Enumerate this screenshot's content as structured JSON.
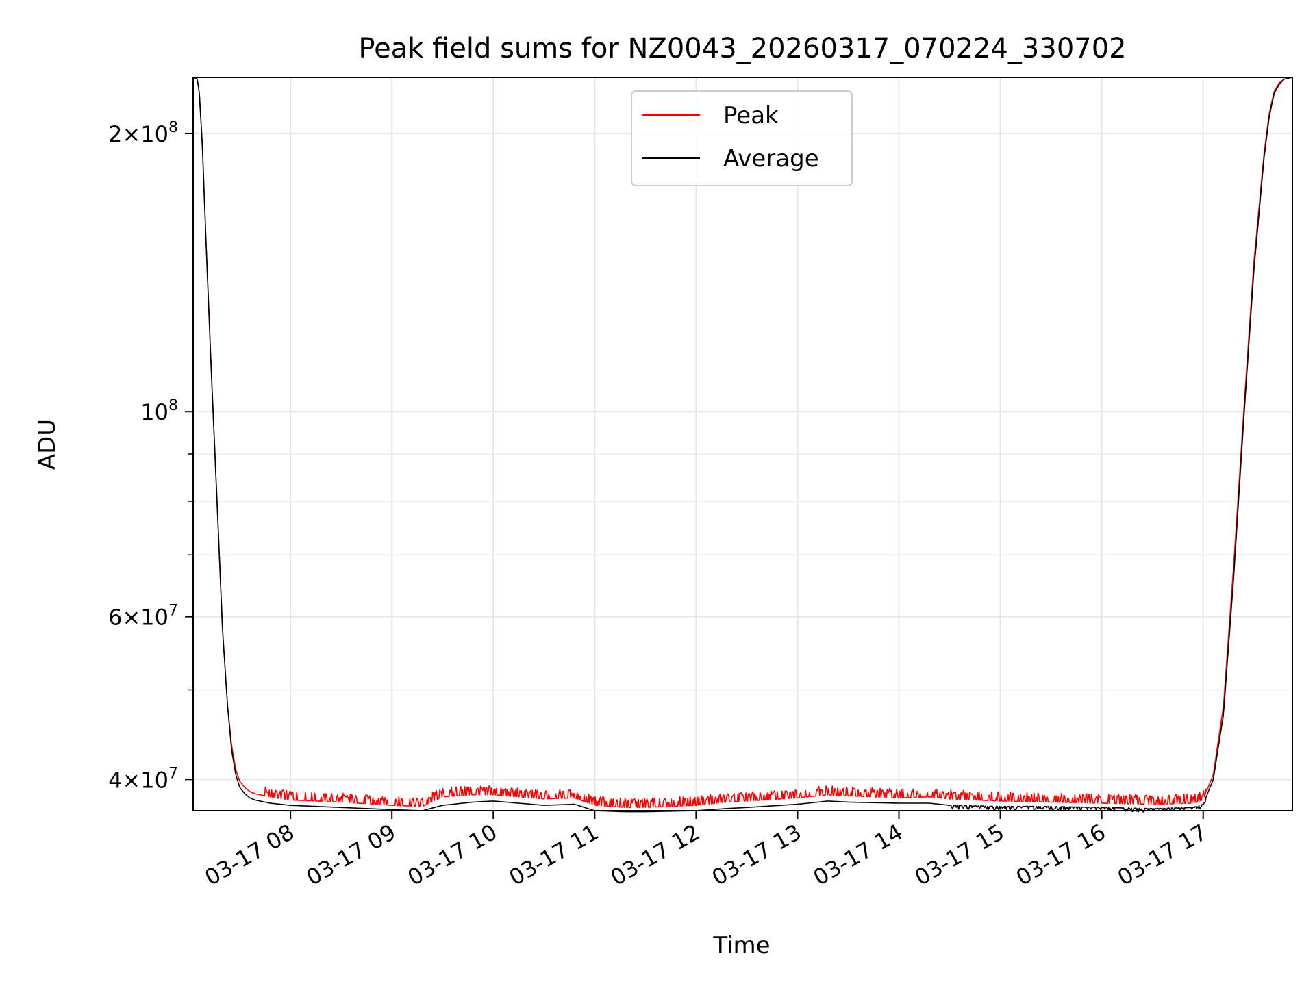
{
  "chart_data": {
    "type": "line",
    "title": "Peak field sums for NZ0043_20260317_070224_330702",
    "xlabel": "Time",
    "ylabel": "ADU",
    "yscale": "log",
    "ylim": [
      37000000,
      230000000
    ],
    "xlim_hours": [
      7.04,
      17.88
    ],
    "x_ticks": [
      {
        "hour": 8,
        "label": "03-17 08"
      },
      {
        "hour": 9,
        "label": "03-17 09"
      },
      {
        "hour": 10,
        "label": "03-17 10"
      },
      {
        "hour": 11,
        "label": "03-17 11"
      },
      {
        "hour": 12,
        "label": "03-17 12"
      },
      {
        "hour": 13,
        "label": "03-17 13"
      },
      {
        "hour": 14,
        "label": "03-17 14"
      },
      {
        "hour": 15,
        "label": "03-17 15"
      },
      {
        "hour": 16,
        "label": "03-17 16"
      },
      {
        "hour": 17,
        "label": "03-17 17"
      }
    ],
    "y_ticks": [
      {
        "value": 200000000,
        "mantissa": "2",
        "exp": "8"
      },
      {
        "value": 100000000,
        "mantissa": "",
        "exp": "8"
      },
      {
        "value": 60000000,
        "mantissa": "6",
        "exp": "7"
      },
      {
        "value": 40000000,
        "mantissa": "4",
        "exp": "7"
      }
    ],
    "y_minor_ticks": [
      50000000,
      70000000,
      80000000,
      90000000
    ],
    "grid": true,
    "legend_position": "top-center",
    "series": [
      {
        "name": "Peak",
        "color": "#ff0000",
        "x_hours": [
          7.04,
          7.08,
          7.1,
          7.13,
          7.17,
          7.22,
          7.28,
          7.33,
          7.38,
          7.42,
          7.46,
          7.5,
          7.55,
          7.6,
          7.65,
          7.7,
          7.75,
          7.8,
          7.9,
          8.0,
          8.5,
          9.0,
          9.3,
          9.5,
          9.8,
          10.0,
          10.5,
          10.8,
          11.0,
          11.3,
          11.5,
          12.0,
          12.3,
          12.5,
          13.0,
          13.3,
          13.5,
          14.0,
          14.3,
          14.5,
          15.0,
          15.5,
          16.0,
          16.5,
          16.9,
          17.0,
          17.1,
          17.2,
          17.3,
          17.4,
          17.5,
          17.6,
          17.65,
          17.7,
          17.75,
          17.8,
          17.88
        ],
        "values": [
          230000000,
          229000000,
          222000000,
          195000000,
          150000000,
          110000000,
          78000000,
          58000000,
          48000000,
          43500000,
          41000000,
          39800000,
          39200000,
          38800000,
          38600000,
          38500000,
          38400000,
          38300000,
          38100000,
          38000000,
          37800000,
          37500000,
          37400000,
          38300000,
          38500000,
          38500000,
          38100000,
          38200000,
          37500000,
          37300000,
          37300000,
          37500000,
          37800000,
          37900000,
          38200000,
          38500000,
          38400000,
          38200000,
          38300000,
          38100000,
          37900000,
          37800000,
          37700000,
          37600000,
          37700000,
          38000000,
          40500000,
          48000000,
          68000000,
          100000000,
          145000000,
          190000000,
          210000000,
          222000000,
          227000000,
          229000000,
          230000000
        ]
      },
      {
        "name": "Average",
        "color": "#000000",
        "x_hours": [
          7.04,
          7.08,
          7.1,
          7.13,
          7.17,
          7.22,
          7.28,
          7.33,
          7.38,
          7.42,
          7.46,
          7.5,
          7.55,
          7.6,
          7.65,
          7.7,
          7.75,
          7.8,
          7.9,
          8.0,
          8.5,
          9.0,
          9.3,
          9.5,
          9.8,
          10.0,
          10.5,
          10.8,
          11.0,
          11.3,
          11.5,
          12.0,
          12.3,
          12.5,
          13.0,
          13.3,
          13.5,
          14.0,
          14.3,
          14.5,
          15.0,
          15.5,
          16.0,
          16.5,
          16.9,
          17.0,
          17.1,
          17.2,
          17.3,
          17.4,
          17.5,
          17.6,
          17.65,
          17.7,
          17.75,
          17.8,
          17.88
        ],
        "values": [
          230000000,
          229000000,
          222000000,
          195000000,
          150000000,
          110000000,
          78000000,
          58000000,
          48000000,
          43000000,
          40500000,
          39200000,
          38600000,
          38200000,
          38000000,
          37900000,
          37800000,
          37700000,
          37600000,
          37500000,
          37300000,
          37100000,
          37000000,
          37500000,
          37800000,
          37900000,
          37500000,
          37600000,
          37000000,
          36900000,
          36900000,
          37000000,
          37200000,
          37300000,
          37600000,
          37900000,
          37800000,
          37700000,
          37700000,
          37500000,
          37400000,
          37400000,
          37300000,
          37200000,
          37300000,
          37600000,
          40000000,
          47000000,
          66000000,
          98000000,
          142000000,
          188000000,
          208000000,
          221000000,
          226000000,
          229000000,
          230000000
        ]
      }
    ]
  }
}
